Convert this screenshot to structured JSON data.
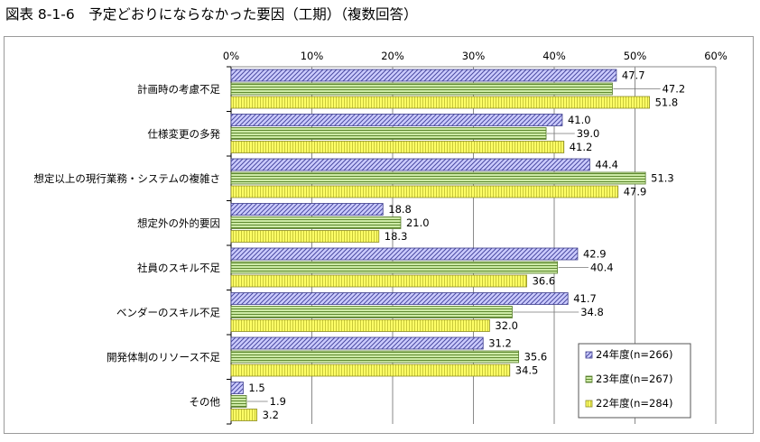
{
  "figure_title": "図表 8-1-6　予定どおりにならなかった要因（工期）（複数回答）",
  "chart_data": {
    "type": "bar",
    "orientation": "horizontal",
    "title": "",
    "xlabel": "",
    "ylabel": "",
    "categories": [
      "計画時の考慮不足",
      "仕様変更の多発",
      "想定以上の現行業務・システムの複雑さ",
      "想定外の外的要因",
      "社員のスキル不足",
      "ベンダーのスキル不足",
      "開発体制のリソース不足",
      "その他"
    ],
    "series": [
      {
        "name": "24年度(n=266)",
        "values": [
          47.7,
          41.0,
          44.4,
          18.8,
          42.9,
          41.7,
          31.2,
          1.5
        ],
        "labels": [
          "47.7",
          "41.0",
          "44.4",
          "18.8",
          "42.9",
          "41.7",
          "31.2",
          "1.5"
        ],
        "fill": "#ccccff",
        "pattern": "diagonal-hatch",
        "stroke": "#3c3c8c"
      },
      {
        "name": "23年度(n=267)",
        "values": [
          47.2,
          39.0,
          51.3,
          21.0,
          40.4,
          34.8,
          35.6,
          1.9
        ],
        "labels": [
          "47.2",
          "39.0",
          "51.3",
          "21.0",
          "40.4",
          "34.8",
          "35.6",
          "1.9"
        ],
        "fill": "#c8e8a0",
        "pattern": "horizontal-lines",
        "stroke": "#557a2a"
      },
      {
        "name": "22年度(n=284)",
        "values": [
          51.8,
          41.2,
          47.9,
          18.3,
          36.6,
          32.0,
          34.5,
          3.2
        ],
        "labels": [
          "51.8",
          "41.2",
          "47.9",
          "18.3",
          "36.6",
          "32.0",
          "34.5",
          "3.2"
        ],
        "fill": "#ffff66",
        "pattern": "vertical-lines",
        "stroke": "#8a8a20"
      }
    ],
    "xlim": [
      0,
      60
    ],
    "xticks": [
      0,
      10,
      20,
      30,
      40,
      50,
      60
    ],
    "xtick_labels": [
      "0%",
      "10%",
      "20%",
      "30%",
      "40%",
      "50%",
      "60%"
    ],
    "x_axis_position": "top",
    "grid": true,
    "legend_position": "bottom-right",
    "leader_lines": true
  }
}
